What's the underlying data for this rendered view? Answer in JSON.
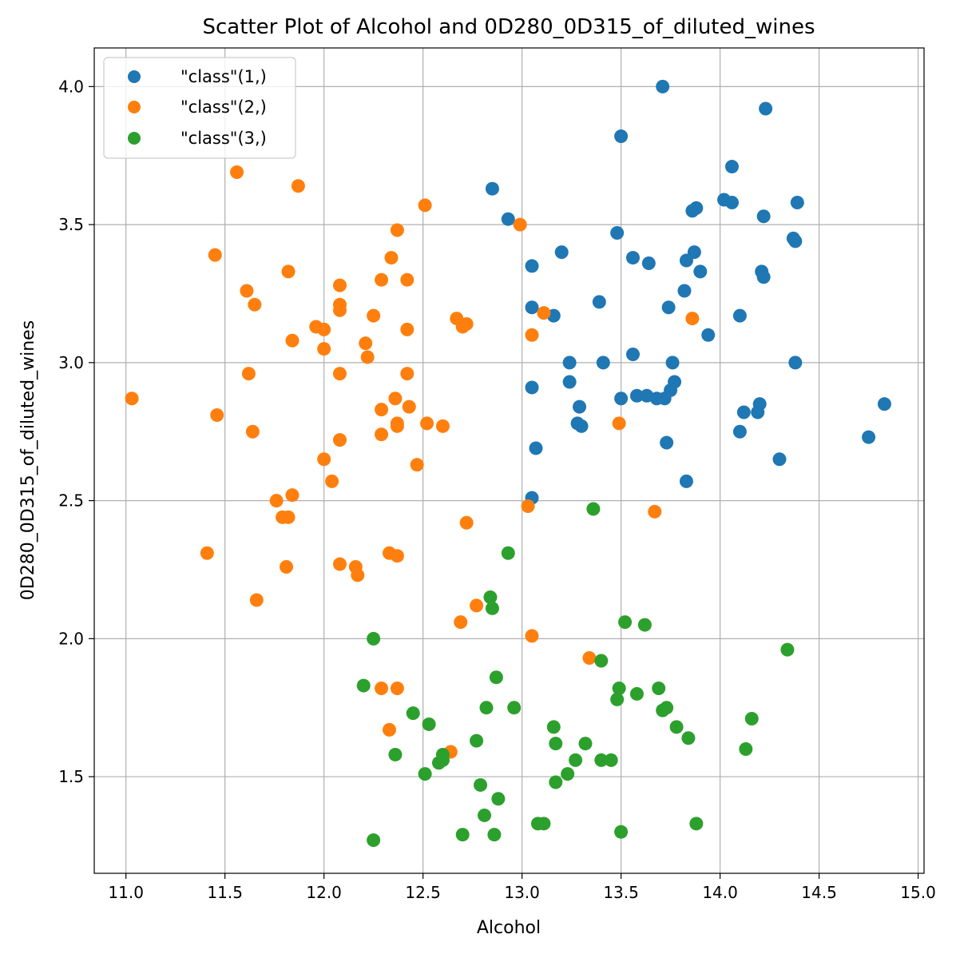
{
  "chart_data": {
    "type": "scatter",
    "title": "Scatter Plot of Alcohol and 0D280_0D315_of_diluted_wines",
    "xlabel": "Alcohol",
    "ylabel": "0D280_0D315_of_diluted_wines",
    "xlim": [
      10.84,
      15.03
    ],
    "ylim": [
      1.15,
      4.14
    ],
    "xticks": [
      11.0,
      11.5,
      12.0,
      12.5,
      13.0,
      13.5,
      14.0,
      14.5,
      15.0
    ],
    "xtick_labels": [
      "11.0",
      "11.5",
      "12.0",
      "12.5",
      "13.0",
      "13.5",
      "14.0",
      "14.5",
      "15.0"
    ],
    "yticks": [
      1.5,
      2.0,
      2.5,
      3.0,
      3.5,
      4.0
    ],
    "ytick_labels": [
      "1.5",
      "2.0",
      "2.5",
      "3.0",
      "3.5",
      "4.0"
    ],
    "grid": true,
    "legend_position": "top-left",
    "series": [
      {
        "name": "\"class\"(1,)",
        "color": "#1f77b4",
        "points": [
          [
            13.71,
            4.0
          ],
          [
            14.23,
            3.92
          ],
          [
            13.5,
            3.82
          ],
          [
            14.06,
            3.71
          ],
          [
            12.85,
            3.63
          ],
          [
            14.02,
            3.59
          ],
          [
            14.06,
            3.58
          ],
          [
            14.39,
            3.58
          ],
          [
            13.88,
            3.56
          ],
          [
            13.86,
            3.55
          ],
          [
            14.22,
            3.53
          ],
          [
            12.93,
            3.52
          ],
          [
            13.48,
            3.47
          ],
          [
            14.37,
            3.45
          ],
          [
            14.38,
            3.44
          ],
          [
            13.87,
            3.4
          ],
          [
            13.2,
            3.4
          ],
          [
            13.56,
            3.38
          ],
          [
            13.83,
            3.37
          ],
          [
            13.64,
            3.36
          ],
          [
            13.05,
            3.35
          ],
          [
            13.9,
            3.33
          ],
          [
            14.21,
            3.33
          ],
          [
            14.22,
            3.31
          ],
          [
            13.82,
            3.26
          ],
          [
            13.39,
            3.22
          ],
          [
            13.05,
            3.2
          ],
          [
            13.74,
            3.2
          ],
          [
            14.1,
            3.17
          ],
          [
            13.16,
            3.17
          ],
          [
            13.94,
            3.1
          ],
          [
            13.56,
            3.03
          ],
          [
            13.24,
            3.0
          ],
          [
            13.41,
            3.0
          ],
          [
            13.76,
            3.0
          ],
          [
            14.38,
            3.0
          ],
          [
            13.24,
            2.93
          ],
          [
            13.77,
            2.93
          ],
          [
            13.05,
            2.91
          ],
          [
            13.75,
            2.9
          ],
          [
            13.58,
            2.88
          ],
          [
            13.63,
            2.88
          ],
          [
            13.68,
            2.87
          ],
          [
            13.72,
            2.87
          ],
          [
            13.5,
            2.87
          ],
          [
            14.83,
            2.85
          ],
          [
            14.2,
            2.85
          ],
          [
            13.29,
            2.84
          ],
          [
            14.12,
            2.82
          ],
          [
            14.19,
            2.82
          ],
          [
            13.28,
            2.78
          ],
          [
            13.3,
            2.77
          ],
          [
            14.1,
            2.75
          ],
          [
            14.75,
            2.73
          ],
          [
            13.73,
            2.71
          ],
          [
            13.07,
            2.69
          ],
          [
            14.3,
            2.65
          ],
          [
            13.83,
            2.57
          ],
          [
            13.05,
            2.51
          ]
        ]
      },
      {
        "name": "\"class\"(2,)",
        "color": "#ff7f0e",
        "points": [
          [
            11.56,
            3.69
          ],
          [
            11.87,
            3.64
          ],
          [
            12.51,
            3.57
          ],
          [
            12.99,
            3.5
          ],
          [
            12.37,
            3.48
          ],
          [
            11.45,
            3.39
          ],
          [
            12.34,
            3.38
          ],
          [
            11.82,
            3.33
          ],
          [
            12.29,
            3.3
          ],
          [
            12.42,
            3.3
          ],
          [
            12.08,
            3.28
          ],
          [
            11.61,
            3.26
          ],
          [
            11.65,
            3.21
          ],
          [
            12.08,
            3.21
          ],
          [
            12.08,
            3.19
          ],
          [
            13.11,
            3.18
          ],
          [
            12.25,
            3.17
          ],
          [
            12.67,
            3.16
          ],
          [
            13.86,
            3.16
          ],
          [
            12.72,
            3.14
          ],
          [
            12.7,
            3.13
          ],
          [
            11.96,
            3.13
          ],
          [
            12.0,
            3.12
          ],
          [
            12.42,
            3.12
          ],
          [
            13.05,
            3.1
          ],
          [
            11.84,
            3.08
          ],
          [
            12.21,
            3.07
          ],
          [
            12.0,
            3.05
          ],
          [
            12.22,
            3.02
          ],
          [
            11.62,
            2.96
          ],
          [
            12.08,
            2.96
          ],
          [
            12.42,
            2.96
          ],
          [
            11.03,
            2.87
          ],
          [
            12.36,
            2.87
          ],
          [
            12.43,
            2.84
          ],
          [
            12.29,
            2.83
          ],
          [
            11.46,
            2.81
          ],
          [
            12.37,
            2.78
          ],
          [
            12.52,
            2.78
          ],
          [
            13.49,
            2.78
          ],
          [
            12.37,
            2.77
          ],
          [
            12.6,
            2.77
          ],
          [
            11.64,
            2.75
          ],
          [
            12.29,
            2.74
          ],
          [
            12.08,
            2.72
          ],
          [
            12.0,
            2.65
          ],
          [
            12.47,
            2.63
          ],
          [
            12.04,
            2.57
          ],
          [
            11.84,
            2.52
          ],
          [
            11.76,
            2.5
          ],
          [
            13.03,
            2.48
          ],
          [
            13.67,
            2.46
          ],
          [
            11.79,
            2.44
          ],
          [
            11.82,
            2.44
          ],
          [
            12.72,
            2.42
          ],
          [
            11.41,
            2.31
          ],
          [
            12.33,
            2.31
          ],
          [
            12.37,
            2.3
          ],
          [
            12.08,
            2.27
          ],
          [
            11.81,
            2.26
          ],
          [
            12.16,
            2.26
          ],
          [
            12.17,
            2.23
          ],
          [
            11.66,
            2.14
          ],
          [
            12.77,
            2.12
          ],
          [
            12.69,
            2.06
          ],
          [
            13.05,
            2.01
          ],
          [
            13.34,
            1.93
          ],
          [
            12.29,
            1.82
          ],
          [
            12.37,
            1.82
          ],
          [
            12.33,
            1.67
          ],
          [
            12.64,
            1.59
          ]
        ]
      },
      {
        "name": "\"class\"(3,)",
        "color": "#2ca02c",
        "points": [
          [
            13.36,
            2.47
          ],
          [
            12.93,
            2.31
          ],
          [
            12.84,
            2.15
          ],
          [
            12.85,
            2.11
          ],
          [
            13.52,
            2.06
          ],
          [
            13.62,
            2.05
          ],
          [
            12.25,
            2.0
          ],
          [
            14.34,
            1.96
          ],
          [
            13.4,
            1.92
          ],
          [
            12.87,
            1.86
          ],
          [
            12.2,
            1.83
          ],
          [
            13.49,
            1.82
          ],
          [
            13.69,
            1.82
          ],
          [
            13.58,
            1.8
          ],
          [
            13.48,
            1.78
          ],
          [
            12.82,
            1.75
          ],
          [
            12.96,
            1.75
          ],
          [
            13.73,
            1.75
          ],
          [
            13.71,
            1.74
          ],
          [
            12.45,
            1.73
          ],
          [
            14.16,
            1.71
          ],
          [
            12.53,
            1.69
          ],
          [
            13.16,
            1.68
          ],
          [
            13.78,
            1.68
          ],
          [
            13.84,
            1.64
          ],
          [
            12.77,
            1.63
          ],
          [
            13.17,
            1.62
          ],
          [
            13.32,
            1.62
          ],
          [
            14.13,
            1.6
          ],
          [
            12.36,
            1.58
          ],
          [
            12.6,
            1.58
          ],
          [
            12.6,
            1.56
          ],
          [
            13.27,
            1.56
          ],
          [
            13.4,
            1.56
          ],
          [
            13.45,
            1.56
          ],
          [
            12.58,
            1.55
          ],
          [
            12.51,
            1.51
          ],
          [
            13.23,
            1.51
          ],
          [
            13.17,
            1.48
          ],
          [
            12.79,
            1.47
          ],
          [
            12.88,
            1.42
          ],
          [
            12.81,
            1.36
          ],
          [
            13.08,
            1.33
          ],
          [
            13.11,
            1.33
          ],
          [
            13.88,
            1.33
          ],
          [
            13.5,
            1.3
          ],
          [
            12.7,
            1.29
          ],
          [
            12.86,
            1.29
          ],
          [
            12.25,
            1.27
          ]
        ]
      }
    ]
  }
}
